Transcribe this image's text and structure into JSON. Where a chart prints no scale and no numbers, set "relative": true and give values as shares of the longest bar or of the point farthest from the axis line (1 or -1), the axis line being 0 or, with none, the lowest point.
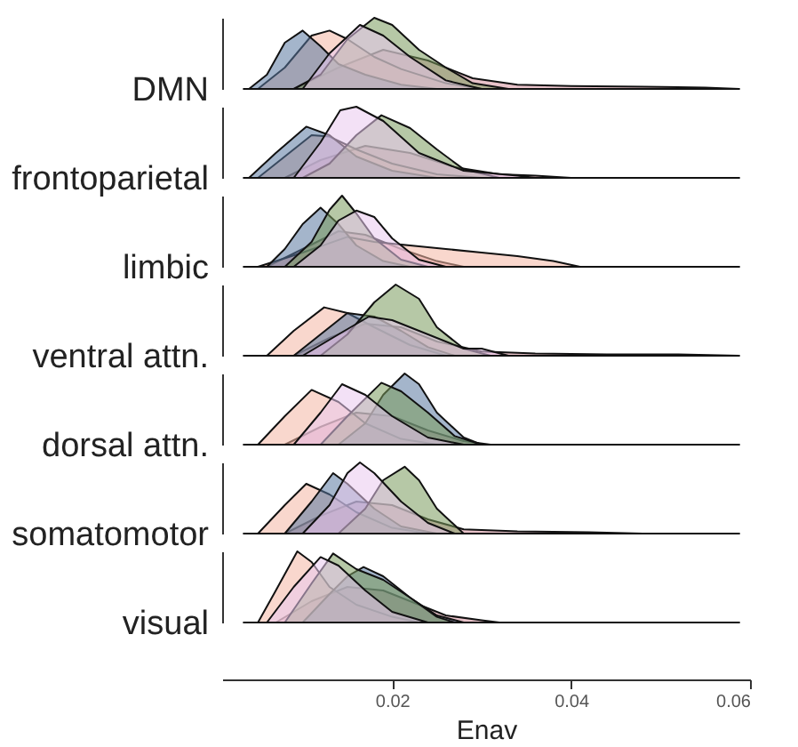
{
  "chart_data": [
    {
      "type": "area",
      "ylabel": "DMN",
      "relative": true,
      "xlim": [
        0.001,
        0.06
      ],
      "tick_labels": false,
      "series": [
        {
          "color": "#d68f9c",
          "x": [
            0.0034,
            0.009,
            0.014,
            0.019,
            0.024,
            0.029,
            0.034,
            0.04,
            0.048,
            0.055,
            0.0588
          ],
          "values": [
            0,
            0,
            0.3,
            0.55,
            0.4,
            0.15,
            0.06,
            0.04,
            0.03,
            0.02,
            0
          ]
        },
        {
          "color": "#f4b6a4",
          "x": [
            0.005,
            0.008,
            0.011,
            0.013,
            0.015,
            0.018,
            0.021,
            0.026,
            0.03
          ],
          "values": [
            0,
            0.3,
            0.75,
            0.82,
            0.7,
            0.45,
            0.28,
            0.08,
            0
          ]
        },
        {
          "color": "#5a78a0",
          "x": [
            0.004,
            0.006,
            0.008,
            0.01,
            0.012,
            0.014,
            0.017,
            0.021,
            0.025
          ],
          "values": [
            0,
            0.2,
            0.65,
            0.82,
            0.6,
            0.35,
            0.2,
            0.06,
            0
          ]
        },
        {
          "color": "#7a9a5c",
          "x": [
            0.009,
            0.012,
            0.015,
            0.018,
            0.02,
            0.023,
            0.026,
            0.029,
            0.033
          ],
          "values": [
            0,
            0.2,
            0.7,
            1,
            0.9,
            0.55,
            0.3,
            0.08,
            0
          ]
        },
        {
          "color": "#e9c9ee",
          "x": [
            0.01,
            0.013,
            0.0164,
            0.019,
            0.022,
            0.026,
            0.03
          ],
          "values": [
            0,
            0.5,
            0.9,
            0.75,
            0.45,
            0.12,
            0
          ]
        }
      ]
    },
    {
      "type": "area",
      "ylabel": "frontoparietal",
      "relative": true,
      "xlim": [
        0.001,
        0.06
      ],
      "tick_labels": false,
      "series": [
        {
          "color": "#d68f9c",
          "x": [
            0.0034,
            0.008,
            0.012,
            0.017,
            0.022,
            0.027,
            0.032,
            0.036,
            0.04,
            0.0588
          ],
          "values": [
            0,
            0,
            0.25,
            0.45,
            0.35,
            0.15,
            0.05,
            0.03,
            0,
            0
          ]
        },
        {
          "color": "#f4b6a4",
          "x": [
            0.005,
            0.008,
            0.011,
            0.013,
            0.016,
            0.02,
            0.025,
            0.03
          ],
          "values": [
            0,
            0.3,
            0.6,
            0.58,
            0.4,
            0.2,
            0.05,
            0
          ]
        },
        {
          "color": "#5a78a0",
          "x": [
            0.004,
            0.007,
            0.0104,
            0.013,
            0.016,
            0.02,
            0.025
          ],
          "values": [
            0,
            0.35,
            0.72,
            0.6,
            0.3,
            0.1,
            0
          ]
        },
        {
          "color": "#7a9a5c",
          "x": [
            0.01,
            0.013,
            0.016,
            0.0188,
            0.022,
            0.025,
            0.028,
            0.032
          ],
          "values": [
            0,
            0.2,
            0.6,
            0.88,
            0.7,
            0.4,
            0.12,
            0
          ]
        },
        {
          "color": "#e9c9ee",
          "x": [
            0.009,
            0.012,
            0.0142,
            0.016,
            0.019,
            0.023,
            0.028,
            0.034,
            0.036
          ],
          "values": [
            0,
            0.5,
            0.95,
            1,
            0.8,
            0.35,
            0.1,
            0.03,
            0
          ]
        }
      ]
    },
    {
      "type": "area",
      "ylabel": "limbic",
      "relative": true,
      "xlim": [
        0.001,
        0.06
      ],
      "tick_labels": false,
      "series": [
        {
          "color": "#d68f9c",
          "x": [
            0.0034,
            0.006,
            0.01,
            0.014,
            0.017,
            0.021,
            0.025,
            0.028,
            0.0588
          ],
          "values": [
            0,
            0,
            0.25,
            0.5,
            0.45,
            0.25,
            0.08,
            0,
            0
          ]
        },
        {
          "color": "#f4b6a4",
          "x": [
            0.005,
            0.01,
            0.015,
            0.018,
            0.022,
            0.026,
            0.03,
            0.034,
            0.038,
            0.041
          ],
          "values": [
            0,
            0.2,
            0.42,
            0.35,
            0.3,
            0.25,
            0.2,
            0.15,
            0.08,
            0
          ]
        },
        {
          "color": "#5a78a0",
          "x": [
            0.006,
            0.008,
            0.01,
            0.012,
            0.014,
            0.016,
            0.019,
            0.022
          ],
          "values": [
            0,
            0.25,
            0.6,
            0.83,
            0.6,
            0.3,
            0.08,
            0
          ]
        },
        {
          "color": "#7a9a5c",
          "x": [
            0.008,
            0.011,
            0.013,
            0.0144,
            0.016,
            0.018,
            0.021,
            0.024
          ],
          "values": [
            0,
            0.35,
            0.8,
            1,
            0.75,
            0.4,
            0.1,
            0
          ]
        },
        {
          "color": "#e9c9ee",
          "x": [
            0.009,
            0.012,
            0.014,
            0.016,
            0.018,
            0.02,
            0.023,
            0.026
          ],
          "values": [
            0,
            0.3,
            0.65,
            0.79,
            0.7,
            0.4,
            0.1,
            0
          ]
        }
      ]
    },
    {
      "type": "area",
      "ylabel": "ventral attn.",
      "relative": true,
      "xlim": [
        0.001,
        0.06
      ],
      "tick_labels": false,
      "series": [
        {
          "color": "#d68f9c",
          "x": [
            0.0034,
            0.009,
            0.013,
            0.017,
            0.021,
            0.025,
            0.03,
            0.036,
            0.044,
            0.052,
            0.0588
          ],
          "values": [
            0,
            0,
            0.25,
            0.45,
            0.4,
            0.2,
            0.06,
            0.03,
            0.02,
            0.02,
            0
          ]
        },
        {
          "color": "#f4b6a4",
          "x": [
            0.006,
            0.009,
            0.0124,
            0.015,
            0.018,
            0.022,
            0.026
          ],
          "values": [
            0,
            0.35,
            0.68,
            0.6,
            0.4,
            0.15,
            0
          ]
        },
        {
          "color": "#5a78a0",
          "x": [
            0.009,
            0.012,
            0.015,
            0.018,
            0.021,
            0.024,
            0.027
          ],
          "values": [
            0,
            0.3,
            0.6,
            0.55,
            0.35,
            0.12,
            0
          ]
        },
        {
          "color": "#7a9a5c",
          "x": [
            0.012,
            0.015,
            0.018,
            0.0204,
            0.023,
            0.025,
            0.028,
            0.031
          ],
          "values": [
            0,
            0.3,
            0.75,
            1,
            0.8,
            0.4,
            0.1,
            0
          ]
        },
        {
          "color": "#e9c9ee",
          "x": [
            0.01,
            0.014,
            0.0174,
            0.02,
            0.024,
            0.028,
            0.03,
            0.033
          ],
          "values": [
            0,
            0.3,
            0.55,
            0.5,
            0.3,
            0.1,
            0.1,
            0
          ]
        }
      ]
    },
    {
      "type": "area",
      "ylabel": "dorsal attn.",
      "relative": true,
      "xlim": [
        0.001,
        0.06
      ],
      "tick_labels": false,
      "series": [
        {
          "color": "#d68f9c",
          "x": [
            0.0034,
            0.008,
            0.012,
            0.016,
            0.02,
            0.024,
            0.028,
            0.031,
            0.0588
          ],
          "values": [
            0,
            0,
            0.25,
            0.45,
            0.4,
            0.2,
            0.05,
            0,
            0
          ]
        },
        {
          "color": "#f4b6a4",
          "x": [
            0.005,
            0.008,
            0.011,
            0.014,
            0.017,
            0.021,
            0.025
          ],
          "values": [
            0,
            0.4,
            0.77,
            0.6,
            0.3,
            0.08,
            0
          ]
        },
        {
          "color": "#5a78a0",
          "x": [
            0.014,
            0.017,
            0.019,
            0.0214,
            0.023,
            0.025,
            0.028,
            0.03
          ],
          "values": [
            0,
            0.3,
            0.7,
            1,
            0.85,
            0.45,
            0.1,
            0
          ]
        },
        {
          "color": "#7a9a5c",
          "x": [
            0.012,
            0.015,
            0.0188,
            0.021,
            0.024,
            0.027,
            0.03
          ],
          "values": [
            0,
            0.4,
            0.87,
            0.75,
            0.45,
            0.12,
            0
          ]
        },
        {
          "color": "#e9c9ee",
          "x": [
            0.009,
            0.012,
            0.0144,
            0.017,
            0.02,
            0.024,
            0.028
          ],
          "values": [
            0,
            0.45,
            0.85,
            0.7,
            0.4,
            0.1,
            0
          ]
        }
      ]
    },
    {
      "type": "area",
      "ylabel": "somatomotor",
      "relative": true,
      "xlim": [
        0.001,
        0.06
      ],
      "tick_labels": false,
      "series": [
        {
          "color": "#d68f9c",
          "x": [
            0.0034,
            0.008,
            0.012,
            0.016,
            0.02,
            0.024,
            0.028,
            0.034,
            0.042,
            0.048,
            0.0588
          ],
          "values": [
            0,
            0,
            0.25,
            0.45,
            0.4,
            0.2,
            0.06,
            0.03,
            0.02,
            0,
            0
          ]
        },
        {
          "color": "#f4b6a4",
          "x": [
            0.005,
            0.008,
            0.0104,
            0.013,
            0.016,
            0.02,
            0.024
          ],
          "values": [
            0,
            0.4,
            0.7,
            0.55,
            0.3,
            0.08,
            0
          ]
        },
        {
          "color": "#5a78a0",
          "x": [
            0.008,
            0.011,
            0.0134,
            0.015,
            0.018,
            0.021,
            0.025
          ],
          "values": [
            0,
            0.45,
            0.85,
            0.7,
            0.35,
            0.1,
            0
          ]
        },
        {
          "color": "#7a9a5c",
          "x": [
            0.014,
            0.017,
            0.019,
            0.0214,
            0.023,
            0.025,
            0.028
          ],
          "values": [
            0,
            0.35,
            0.75,
            0.94,
            0.75,
            0.35,
            0
          ]
        },
        {
          "color": "#e9c9ee",
          "x": [
            0.01,
            0.013,
            0.015,
            0.0164,
            0.018,
            0.021,
            0.024,
            0.027
          ],
          "values": [
            0,
            0.4,
            0.85,
            1,
            0.85,
            0.45,
            0.15,
            0
          ]
        }
      ]
    },
    {
      "type": "area",
      "ylabel": "visual",
      "xlabel": "Enav",
      "relative": true,
      "xlim": [
        0.001,
        0.06
      ],
      "xticks": [
        0.02,
        0.04,
        0.06
      ],
      "series": [
        {
          "color": "#d68f9c",
          "x": [
            0.0034,
            0.007,
            0.011,
            0.015,
            0.019,
            0.023,
            0.026,
            0.03,
            0.032,
            0.0588
          ],
          "values": [
            0,
            0,
            0.3,
            0.5,
            0.45,
            0.25,
            0.1,
            0.03,
            0,
            0
          ]
        },
        {
          "color": "#f4b6a4",
          "x": [
            0.005,
            0.007,
            0.0094,
            0.011,
            0.013,
            0.016,
            0.02,
            0.023
          ],
          "values": [
            0,
            0.45,
            1,
            0.85,
            0.5,
            0.25,
            0.08,
            0
          ]
        },
        {
          "color": "#5a78a0",
          "x": [
            0.01,
            0.013,
            0.015,
            0.0168,
            0.019,
            0.022,
            0.025,
            0.028
          ],
          "values": [
            0,
            0.4,
            0.65,
            0.78,
            0.65,
            0.35,
            0.1,
            0
          ]
        },
        {
          "color": "#7a9a5c",
          "x": [
            0.008,
            0.011,
            0.0134,
            0.016,
            0.019,
            0.022,
            0.025,
            0.027
          ],
          "values": [
            0,
            0.55,
            0.97,
            0.75,
            0.6,
            0.35,
            0.08,
            0
          ]
        },
        {
          "color": "#e9c9ee",
          "x": [
            0.006,
            0.009,
            0.012,
            0.014,
            0.017,
            0.02,
            0.024
          ],
          "values": [
            0,
            0.5,
            0.92,
            0.8,
            0.45,
            0.15,
            0
          ]
        }
      ]
    }
  ]
}
